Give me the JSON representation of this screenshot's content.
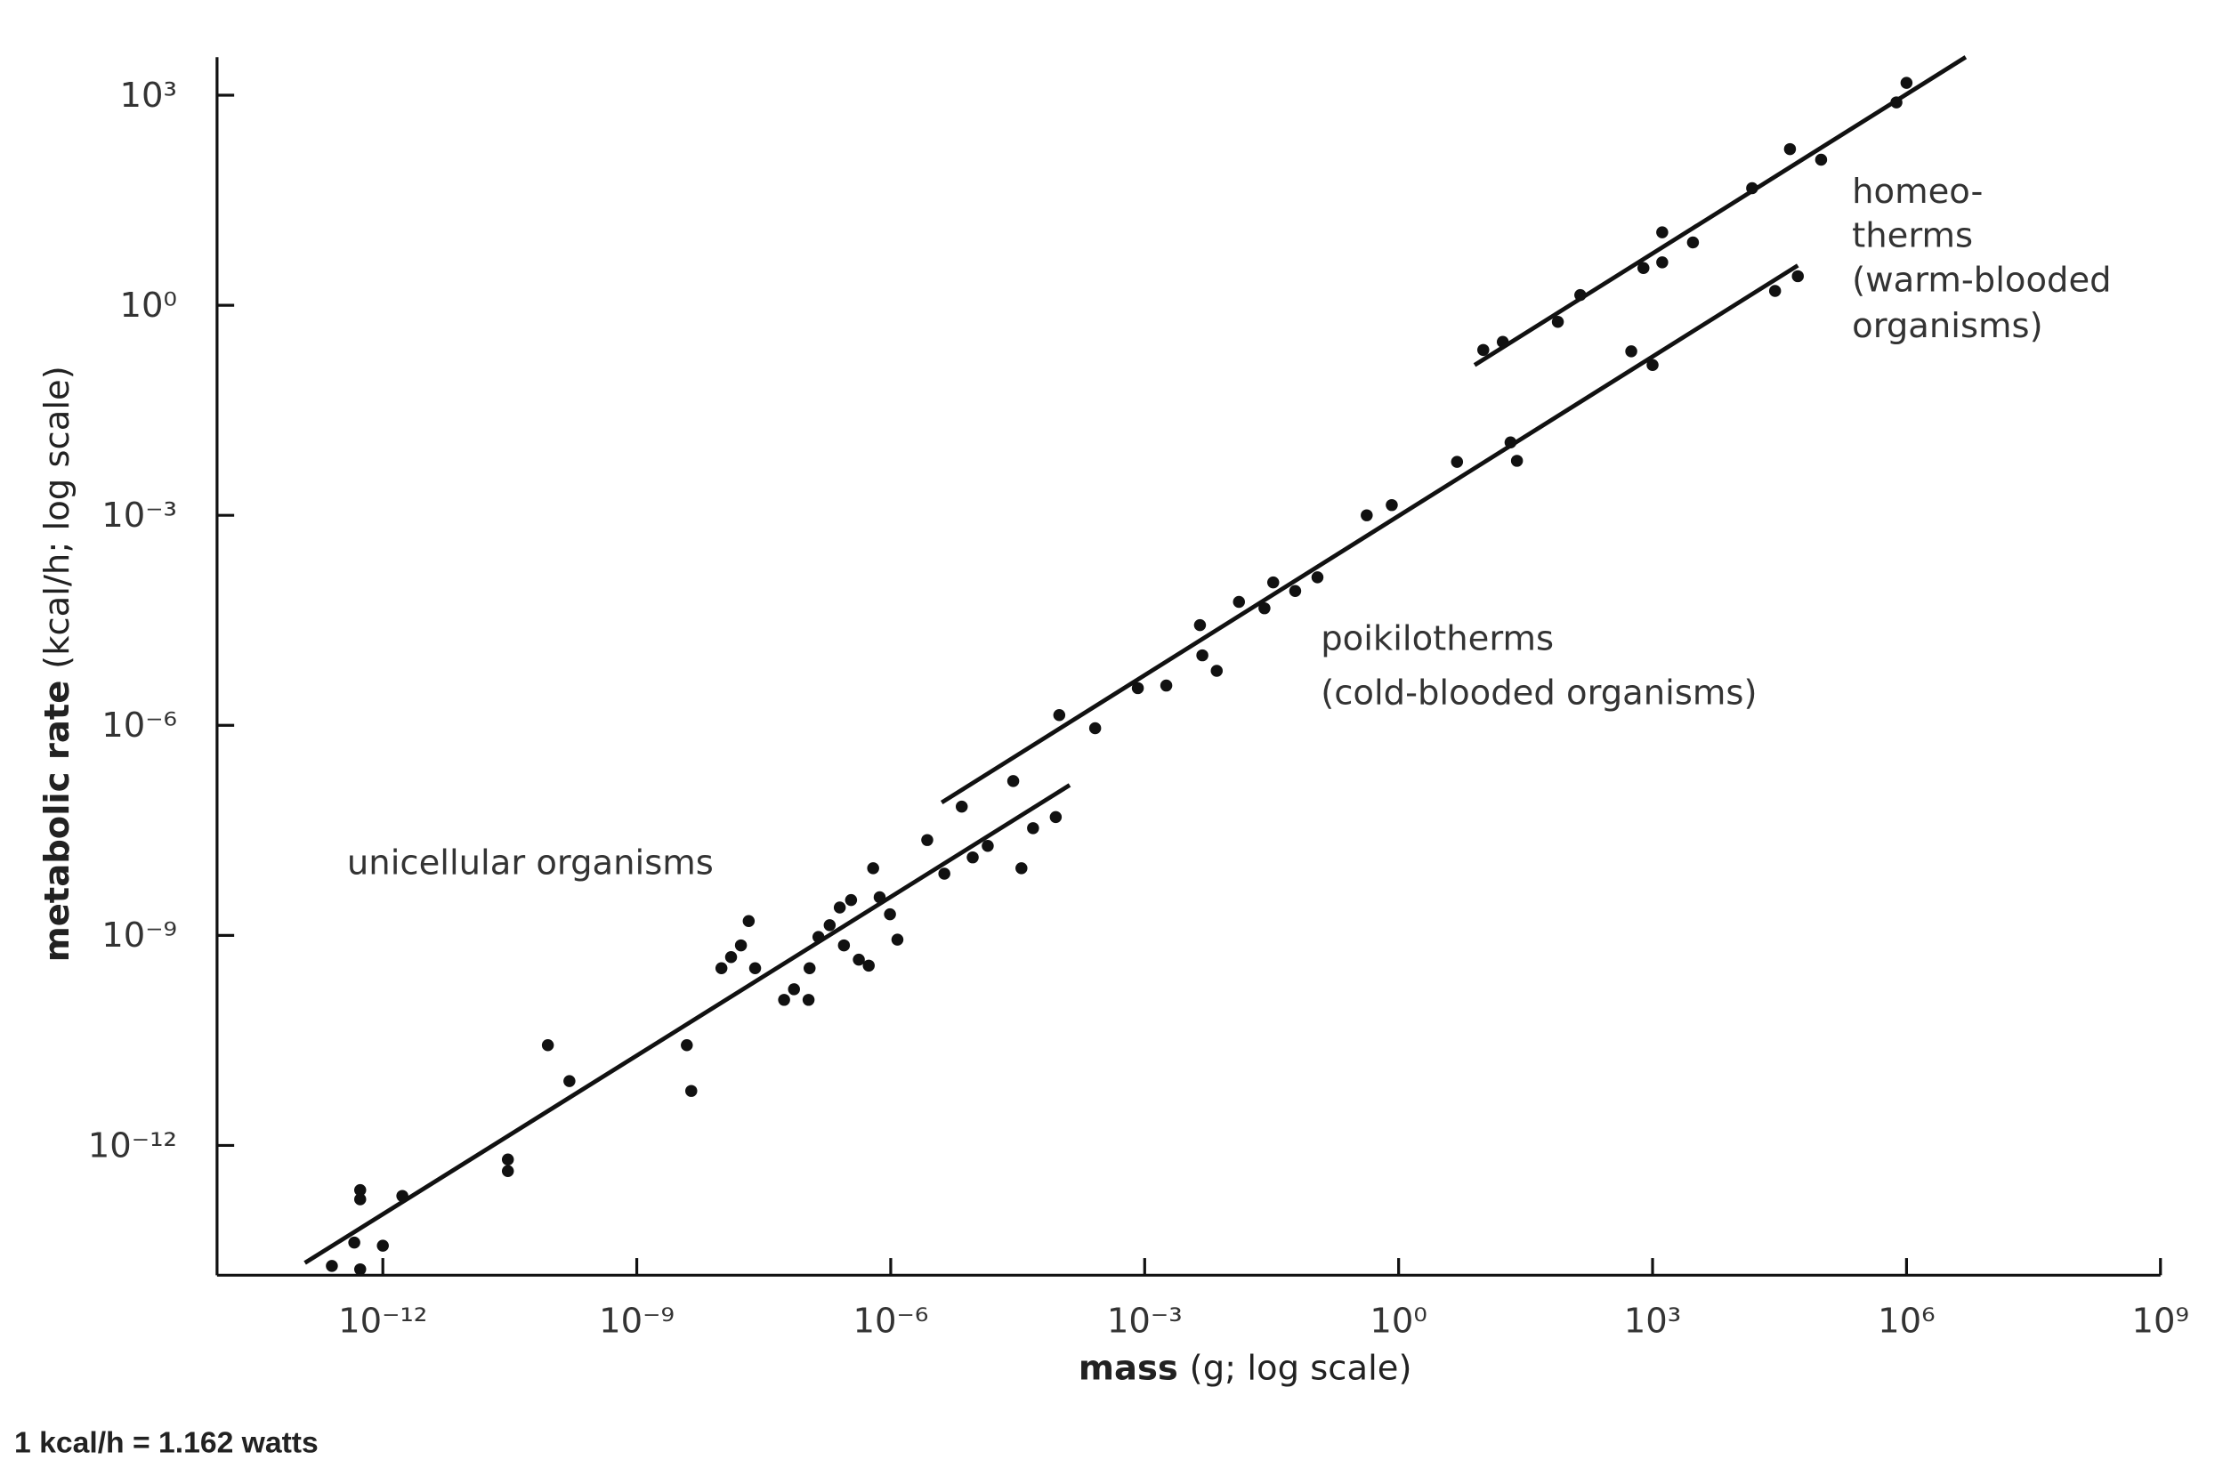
{
  "chart_data": {
    "type": "scatter",
    "x_label": [
      "mass",
      "(g; log scale)"
    ],
    "y_label": [
      "metabolic rate",
      "(kcal/h; log scale)"
    ],
    "footnote": "1 kcal/h = 1.162 watts",
    "annotations": [
      "unicellular organisms",
      "poikilotherms",
      "(cold-blooded organisms)",
      "homeo-",
      "therms",
      "(warm-blooded",
      "organisms)"
    ],
    "xscale": "log",
    "yscale": "log",
    "grid": false,
    "color": "#111111",
    "xlim": [
      1.1e-14,
      1000000000.0
    ],
    "ylim": [
      1.4e-14,
      3500
    ],
    "xticks": [
      {
        "value": 1e-12,
        "label": "10⁻¹²"
      },
      {
        "value": 1e-09,
        "label": "10⁻⁹"
      },
      {
        "value": 1e-06,
        "label": "10⁻⁶"
      },
      {
        "value": 0.001,
        "label": "10⁻³"
      },
      {
        "value": 1,
        "label": "10⁰"
      },
      {
        "value": 1000.0,
        "label": "10³"
      },
      {
        "value": 1000000.0,
        "label": "10⁶"
      },
      {
        "value": 1000000000.0,
        "label": "10⁹"
      }
    ],
    "yticks": [
      {
        "value": 1e-12,
        "label": "10⁻¹²"
      },
      {
        "value": 1e-09,
        "label": "10⁻⁹"
      },
      {
        "value": 1e-06,
        "label": "10⁻⁶"
      },
      {
        "value": 0.001,
        "label": "10⁻³"
      },
      {
        "value": 1,
        "label": "10⁰"
      },
      {
        "value": 1000.0,
        "label": "10³"
      }
    ],
    "series": [
      {
        "x": [
          2.5e-13,
          5.4e-13,
          1e-12,
          4.6e-13,
          5.4e-13,
          5.4e-13,
          1.7e-12,
          3e-11,
          3e-11,
          8.9e-11,
          1.6e-10,
          3.9e-09,
          4.4e-09,
          1e-08,
          1.3e-08,
          1.7e-08,
          2.1e-08,
          2.5e-08,
          5.5e-08,
          7.2e-08,
          1.1e-07,
          1.4e-07,
          1.9e-07,
          2.5e-07,
          3.4e-07,
          4.2e-07,
          5.5e-07,
          6.2e-07,
          7.4e-07,
          9.8e-07,
          1.2e-06,
          1.07e-07,
          2.8e-07,
          2.7e-06,
          4.3e-06,
          6.9e-06,
          9.3e-06,
          1.4e-05,
          2.8e-05,
          3.5e-05,
          4.8e-05,
          8.9e-05,
          9.8e-05,
          0.00026,
          0.00083,
          0.0018,
          0.0045,
          0.0048,
          0.0071,
          0.013,
          0.026,
          0.033,
          0.06,
          0.11,
          0.42,
          0.83,
          4.9,
          21,
          25,
          560,
          1000,
          28000,
          52000,
          10,
          17,
          76,
          140,
          780,
          1300,
          1300,
          3000,
          15000,
          42000,
          98000,
          760000,
          1000000
        ],
        "values": [
          1.9e-14,
          1.7e-14,
          3.7e-14,
          4.1e-14,
          2.3e-13,
          1.7e-13,
          1.9e-13,
          6.3e-13,
          4.3e-13,
          2.7e-11,
          8.3e-12,
          2.7e-11,
          6e-12,
          3.4e-10,
          4.9e-10,
          7.2e-10,
          1.6e-09,
          3.4e-10,
          1.2e-10,
          1.7e-10,
          3.4e-10,
          9.5e-10,
          1.4e-09,
          2.5e-09,
          3.2e-09,
          4.5e-10,
          3.7e-10,
          9.1e-09,
          3.5e-09,
          2e-09,
          8.7e-10,
          1.2e-10,
          7.2e-10,
          2.3e-08,
          7.6e-09,
          6.9e-08,
          1.3e-08,
          1.9e-08,
          1.6e-07,
          9.1e-09,
          3.4e-08,
          4.9e-08,
          1.4e-06,
          9.1e-07,
          3.4e-06,
          3.7e-06,
          2.7e-05,
          1e-05,
          6e-06,
          5.8e-05,
          4.7e-05,
          0.00011,
          8.3e-05,
          0.00013,
          0.001,
          0.0014,
          0.0058,
          0.011,
          0.006,
          0.22,
          0.14,
          1.6,
          2.6,
          0.23,
          0.3,
          0.58,
          1.4,
          3.4,
          11,
          4.1,
          7.9,
          47,
          170,
          120,
          790,
          1500
        ]
      }
    ],
    "lines": [
      {
        "x": [
          1.2e-13,
          0.00013
        ],
        "values": [
          2.1e-14,
          1.4e-07
        ]
      },
      {
        "x": [
          4e-06,
          52000
        ],
        "values": [
          7.9e-08,
          3.7
        ]
      },
      {
        "x": [
          7.9,
          5000000
        ],
        "values": [
          0.14,
          3500
        ]
      }
    ]
  }
}
